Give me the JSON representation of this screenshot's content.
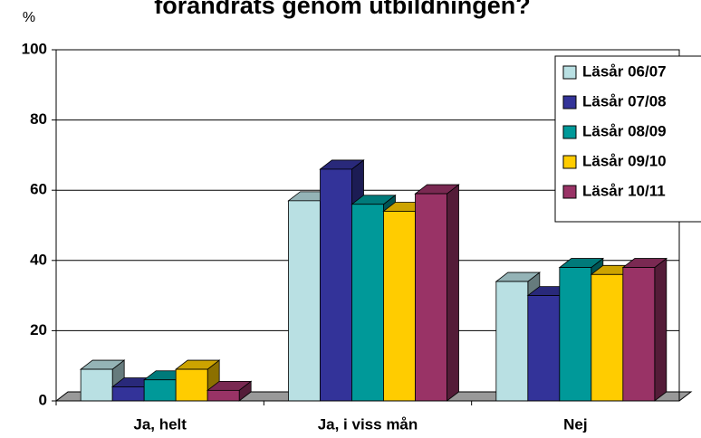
{
  "chart_data": {
    "type": "bar",
    "title": "förändrats genom utbildningen?",
    "y_label": "%",
    "categories": [
      "Ja, helt",
      "Ja, i viss mån",
      "Nej"
    ],
    "series": [
      {
        "name": "Läsår 06/07",
        "color": "#b9e0e3",
        "values": [
          9,
          57,
          34
        ]
      },
      {
        "name": "Läsår 07/08",
        "color": "#333399",
        "values": [
          4,
          66,
          30
        ]
      },
      {
        "name": "Läsår 08/09",
        "color": "#009999",
        "values": [
          6,
          56,
          38
        ]
      },
      {
        "name": "Läsår 09/10",
        "color": "#ffcc00",
        "values": [
          9,
          54,
          36
        ]
      },
      {
        "name": "Läsår 10/11",
        "color": "#993366",
        "values": [
          3,
          59,
          38
        ]
      }
    ],
    "ylim": [
      0,
      100
    ],
    "yticks": [
      0,
      20,
      40,
      60,
      80,
      100
    ],
    "grid": true,
    "legend": "upper right"
  }
}
